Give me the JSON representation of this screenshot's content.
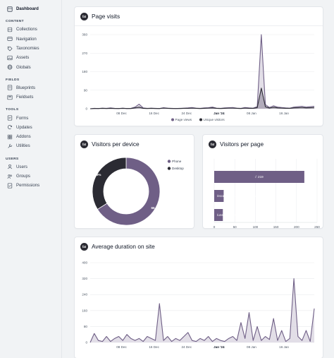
{
  "sidebar": {
    "dashboard": "Dashboard",
    "sections": [
      {
        "title": "CONTENT",
        "items": [
          {
            "label": "Collections",
            "icon": "collections-icon"
          },
          {
            "label": "Navigation",
            "icon": "navigation-icon"
          },
          {
            "label": "Taxonomies",
            "icon": "tag-icon"
          },
          {
            "label": "Assets",
            "icon": "image-icon"
          },
          {
            "label": "Globals",
            "icon": "globe-icon"
          }
        ]
      },
      {
        "title": "FIELDS",
        "items": [
          {
            "label": "Blueprints",
            "icon": "blueprint-icon"
          },
          {
            "label": "Fieldsets",
            "icon": "fieldset-icon"
          }
        ]
      },
      {
        "title": "TOOLS",
        "items": [
          {
            "label": "Forms",
            "icon": "form-icon"
          },
          {
            "label": "Updates",
            "icon": "updates-icon"
          },
          {
            "label": "Addons",
            "icon": "addon-icon"
          },
          {
            "label": "Utilities",
            "icon": "utility-icon"
          }
        ]
      },
      {
        "title": "USERS",
        "items": [
          {
            "label": "Users",
            "icon": "user-icon"
          },
          {
            "label": "Groups",
            "icon": "group-icon"
          },
          {
            "label": "Permissions",
            "icon": "permission-icon"
          }
        ]
      }
    ]
  },
  "widgets": {
    "badge_text": "fat",
    "page_visits_title": "Page visits",
    "visitors_device_title": "Visitors per device",
    "visitors_page_title": "Visitors per page",
    "avg_duration_title": "Average duration on site"
  },
  "colors": {
    "accent": "#6f5f86",
    "accent_light": "#d9d5e0",
    "dark": "#2b2b33",
    "grid": "#e7e9ec"
  },
  "chart_data": [
    {
      "type": "area",
      "title": "Page visits",
      "ylim": [
        0,
        360
      ],
      "yticks": [
        0,
        90,
        180,
        270,
        360
      ],
      "xtick_labels": [
        {
          "label": "08 Dec",
          "x": 0.14
        },
        {
          "label": "16 Dec",
          "x": 0.285
        },
        {
          "label": "24 Dec",
          "x": 0.43
        },
        {
          "label": "Jan '24",
          "x": 0.575,
          "bold": true
        },
        {
          "label": "08 Jan",
          "x": 0.72
        },
        {
          "label": "16 Jan",
          "x": 0.865
        }
      ],
      "series": [
        {
          "name": "Page views",
          "color": "#6f5f86",
          "values": [
            0,
            2,
            1,
            3,
            2,
            4,
            2,
            1,
            3,
            1,
            2,
            8,
            22,
            4,
            2,
            3,
            2,
            1,
            5,
            3,
            2,
            1,
            2,
            3,
            4,
            6,
            3,
            2,
            4,
            5,
            8,
            3,
            2,
            4,
            5,
            6,
            3,
            2,
            6,
            4,
            3,
            10,
            365,
            20,
            6,
            14,
            8,
            6,
            4,
            3,
            8,
            10,
            12,
            8,
            10,
            12
          ]
        },
        {
          "name": "Unique visitors",
          "color": "#2b2b33",
          "values": [
            0,
            1,
            1,
            2,
            1,
            2,
            1,
            1,
            2,
            1,
            1,
            4,
            8,
            2,
            1,
            2,
            1,
            1,
            3,
            2,
            1,
            1,
            1,
            2,
            2,
            3,
            2,
            1,
            2,
            3,
            4,
            2,
            1,
            2,
            3,
            3,
            2,
            1,
            3,
            2,
            2,
            5,
            100,
            10,
            3,
            7,
            4,
            3,
            2,
            2,
            4,
            5,
            6,
            4,
            5,
            6
          ]
        }
      ],
      "legend": "bottom"
    },
    {
      "type": "pie",
      "title": "Visitors per device",
      "slices": [
        {
          "name": "Phone",
          "value": 66.1,
          "label": "66.1%",
          "color": "#6f5f86"
        },
        {
          "name": "Desktop",
          "value": 33.9,
          "label": "33.9%",
          "color": "#2b2b33"
        }
      ],
      "legend": "right"
    },
    {
      "type": "bar",
      "title": "Visitors per page",
      "orientation": "horizontal",
      "categories": [
        "/",
        "/ecommerce/nl/landing-nl",
        "/unsubscribe"
      ],
      "values": [
        219,
        23,
        21
      ],
      "value_labels": [
        "/: 219",
        "/ecommerce/nl/landing-nl: 23",
        "/unsubscribe: 21"
      ],
      "xlim": [
        0,
        250
      ],
      "xticks": [
        0,
        50,
        100,
        150,
        200,
        250
      ]
    },
    {
      "type": "area",
      "title": "Average duration on site",
      "ylim": [
        0,
        400
      ],
      "yticks": [
        0,
        80,
        160,
        240,
        320,
        400
      ],
      "xtick_labels": [
        {
          "label": "08 Dec",
          "x": 0.14
        },
        {
          "label": "16 Dec",
          "x": 0.285
        },
        {
          "label": "24 Dec",
          "x": 0.43
        },
        {
          "label": "Jan '24",
          "x": 0.575,
          "bold": true
        },
        {
          "label": "08 Jan",
          "x": 0.72
        },
        {
          "label": "16 Jan",
          "x": 0.865
        }
      ],
      "series": [
        {
          "name": "Average duration",
          "color": "#6f5f86",
          "values": [
            0,
            45,
            10,
            5,
            30,
            5,
            20,
            30,
            10,
            40,
            20,
            10,
            20,
            5,
            30,
            20,
            10,
            195,
            10,
            30,
            5,
            20,
            10,
            30,
            50,
            10,
            5,
            20,
            10,
            30,
            5,
            20,
            10,
            5,
            20,
            30,
            10,
            100,
            20,
            150,
            10,
            80,
            10,
            30,
            15,
            120,
            10,
            60,
            5,
            20,
            320,
            30,
            10,
            60,
            5,
            170
          ]
        }
      ]
    }
  ]
}
